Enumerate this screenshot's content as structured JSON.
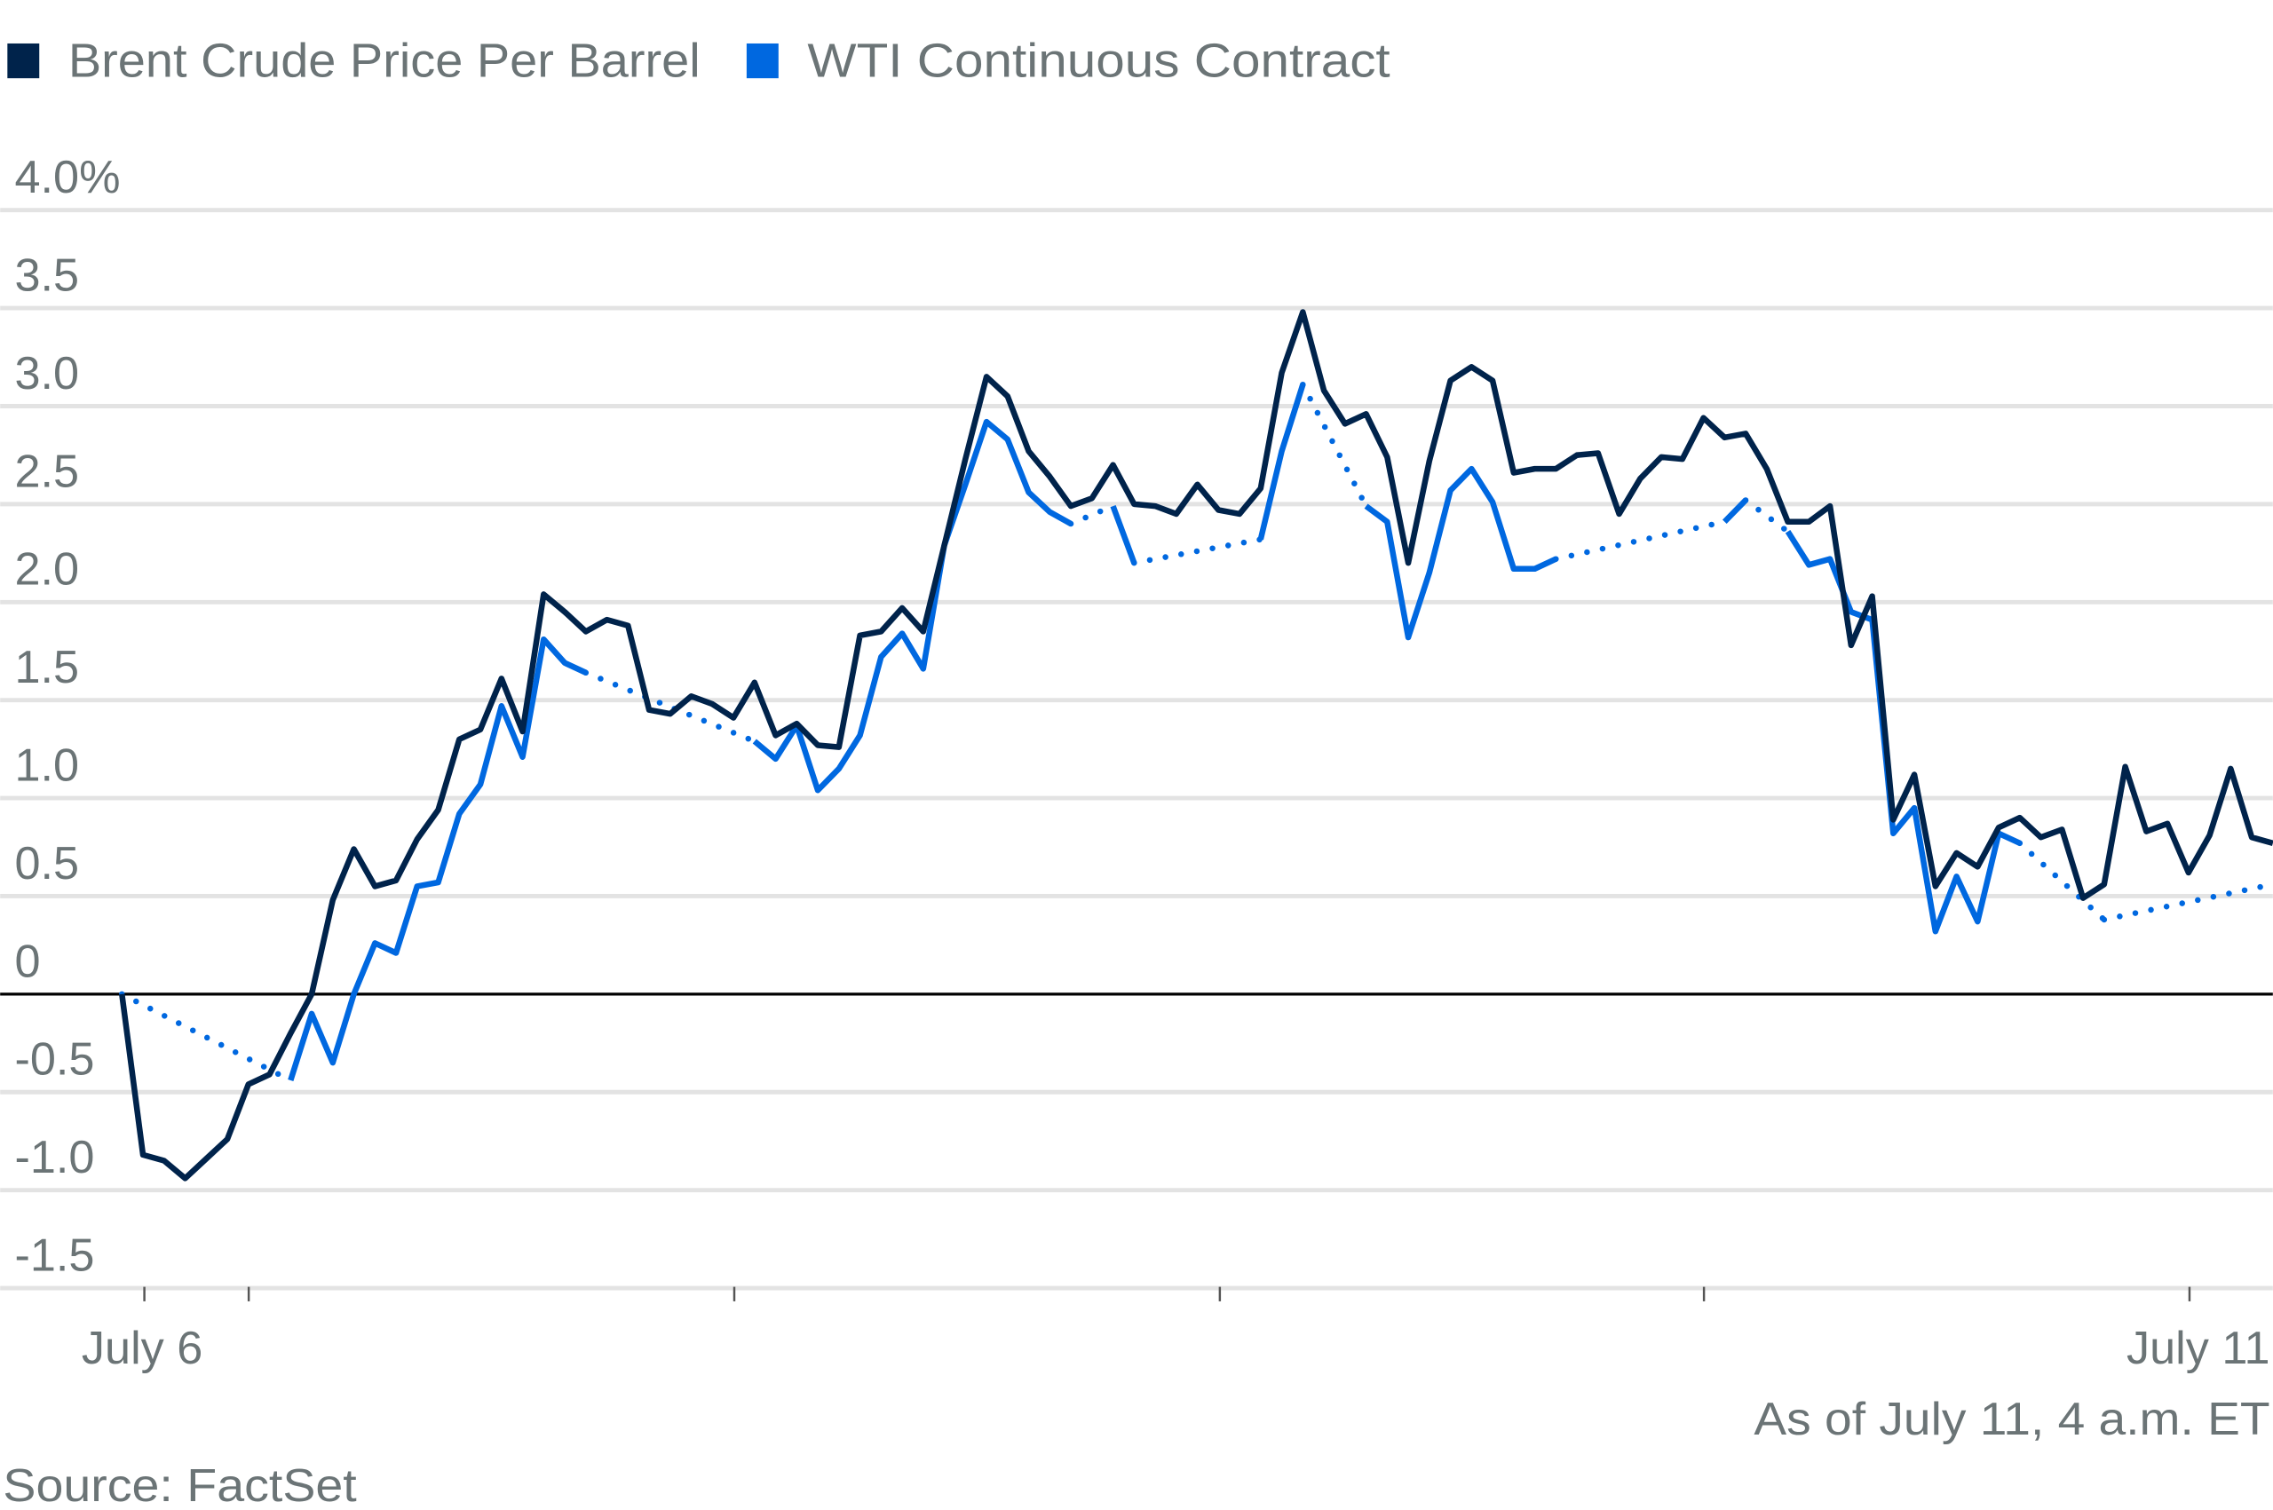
{
  "chart_data": {
    "type": "line",
    "legend_position": "top-left",
    "series": [
      {
        "name": "Brent Crude Price Per Barrel",
        "color": "#00234b",
        "values": [
          0,
          -0.82,
          -0.85,
          -0.94,
          -0.84,
          -0.74,
          -0.46,
          -0.41,
          -0.2,
          0,
          0.48,
          0.74,
          0.55,
          0.58,
          0.79,
          0.94,
          1.3,
          1.35,
          1.61,
          1.34,
          2.04,
          1.95,
          1.85,
          1.91,
          1.88,
          1.45,
          1.43,
          1.52,
          1.48,
          1.41,
          1.59,
          1.32,
          1.38,
          1.27,
          1.26,
          1.83,
          1.85,
          1.97,
          1.85,
          2.29,
          2.73,
          3.15,
          3.05,
          2.77,
          2.64,
          2.49,
          2.53,
          2.7,
          2.5,
          2.49,
          2.45,
          2.6,
          2.47,
          2.45,
          2.58,
          3.17,
          3.48,
          3.08,
          2.91,
          2.96,
          2.74,
          2.2,
          2.72,
          3.13,
          3.2,
          3.13,
          2.66,
          2.68,
          2.68,
          2.75,
          2.76,
          2.45,
          2.63,
          2.74,
          2.73,
          2.94,
          2.84,
          2.86,
          2.68,
          2.41,
          2.41,
          2.49,
          1.78,
          2.03,
          0.89,
          1.12,
          0.55,
          0.72,
          0.65,
          0.85,
          0.9,
          0.8,
          0.84,
          0.49,
          0.56,
          1.16,
          0.83,
          0.87,
          0.62,
          0.81,
          1.15,
          0.8,
          0.77
        ]
      },
      {
        "name": "WTI Continuous Contract",
        "color": "#0068e0",
        "values": [
          0,
          null,
          null,
          null,
          null,
          null,
          null,
          null,
          -0.44,
          -0.1,
          -0.35,
          0,
          0.26,
          0.21,
          0.55,
          0.57,
          0.92,
          1.07,
          1.47,
          1.21,
          1.81,
          1.69,
          1.64,
          null,
          null,
          null,
          null,
          null,
          null,
          null,
          1.29,
          1.2,
          1.37,
          1.04,
          1.15,
          1.32,
          1.72,
          1.84,
          1.66,
          2.29,
          2.6,
          2.92,
          2.83,
          2.56,
          2.46,
          2.4,
          null,
          2.49,
          2.2,
          null,
          null,
          null,
          null,
          null,
          2.32,
          2.77,
          3.11,
          null,
          null,
          2.49,
          2.41,
          1.82,
          2.15,
          2.57,
          2.68,
          2.51,
          2.17,
          2.17,
          2.22,
          null,
          null,
          null,
          null,
          null,
          null,
          null,
          2.41,
          2.52,
          null,
          2.36,
          2.19,
          2.22,
          1.95,
          1.91,
          0.82,
          0.95,
          0.32,
          0.6,
          0.37,
          0.82,
          0.77,
          null,
          null,
          null,
          0.38,
          null,
          null,
          null,
          null,
          null,
          null,
          null,
          0.56
        ]
      }
    ],
    "y_ticks": [
      {
        "value": 4.0,
        "label": "4.0%"
      },
      {
        "value": 3.5,
        "label": "3.5"
      },
      {
        "value": 3.0,
        "label": "3.0"
      },
      {
        "value": 2.5,
        "label": "2.5"
      },
      {
        "value": 2.0,
        "label": "2.0"
      },
      {
        "value": 1.5,
        "label": "1.5"
      },
      {
        "value": 1.0,
        "label": "1.0"
      },
      {
        "value": 0.5,
        "label": "0.5"
      },
      {
        "value": 0,
        "label": "0"
      },
      {
        "value": -0.5,
        "label": "-0.5"
      },
      {
        "value": -1.0,
        "label": "-1.0"
      },
      {
        "value": -1.5,
        "label": "-1.5"
      }
    ],
    "ylim": [
      -1.5,
      4.0
    ],
    "x_labels": {
      "start": "July 6",
      "end": "July 11"
    },
    "grid": true,
    "note": "As of July 11, 4 a.m. ET",
    "source": "Source: FactSet"
  }
}
